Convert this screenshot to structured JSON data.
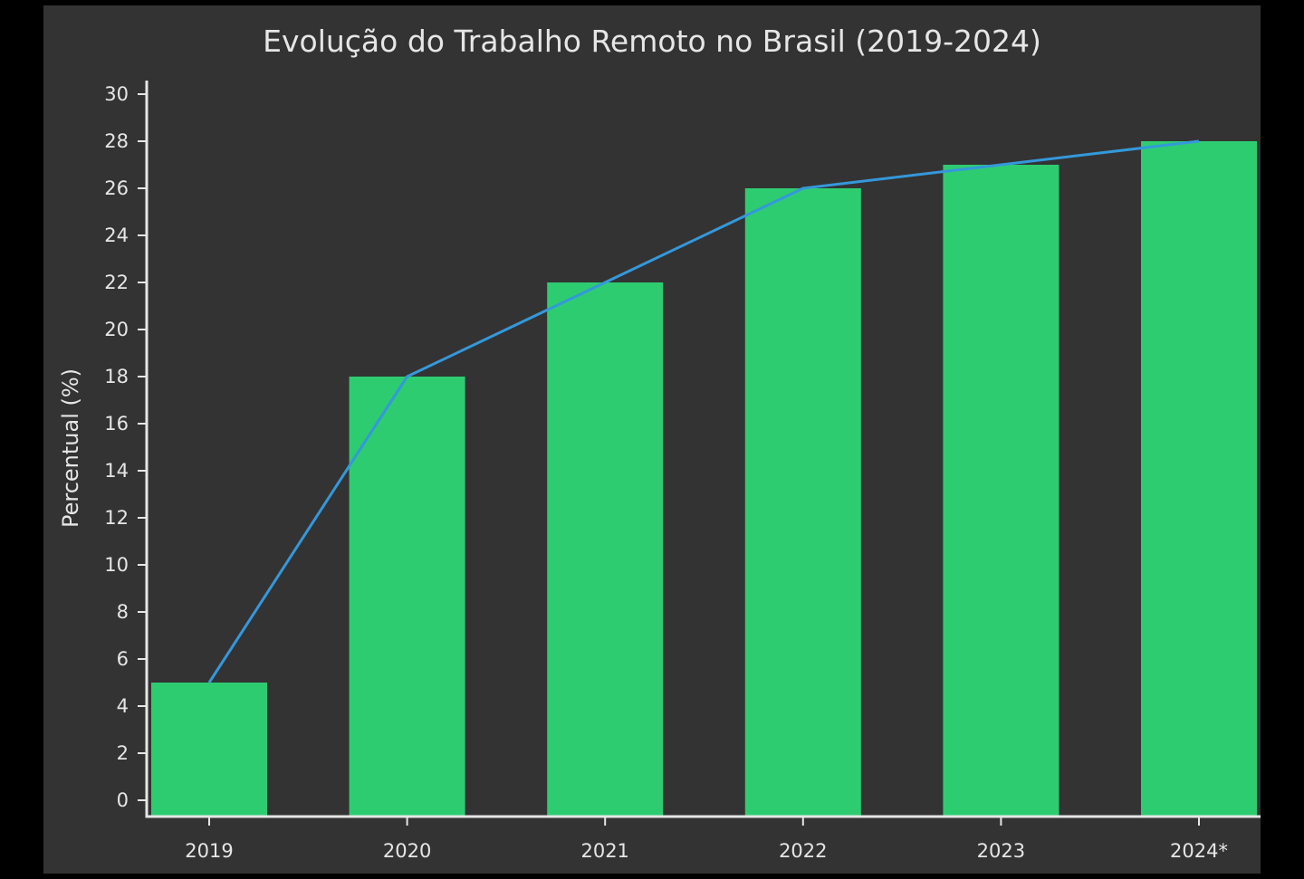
{
  "chart_data": {
    "type": "bar",
    "title": "Evolução do Trabalho Remoto no Brasil (2019-2024)",
    "xlabel": "",
    "ylabel": "Percentual (%)",
    "categories": [
      "2019",
      "2020",
      "2021",
      "2022",
      "2023",
      "2024*"
    ],
    "values": [
      5,
      18,
      22,
      26,
      27,
      28
    ],
    "trend_line": [
      5,
      18,
      22,
      26,
      27,
      28
    ],
    "ylim": [
      0,
      30
    ],
    "yticks": [
      0,
      2,
      4,
      6,
      8,
      10,
      12,
      14,
      16,
      18,
      20,
      22,
      24,
      26,
      28,
      30
    ],
    "grid": false,
    "legend": "none",
    "colors": {
      "bar": "#2ecc71",
      "line": "#3498db",
      "background": "#333333",
      "text": "#e6e6e6"
    }
  }
}
